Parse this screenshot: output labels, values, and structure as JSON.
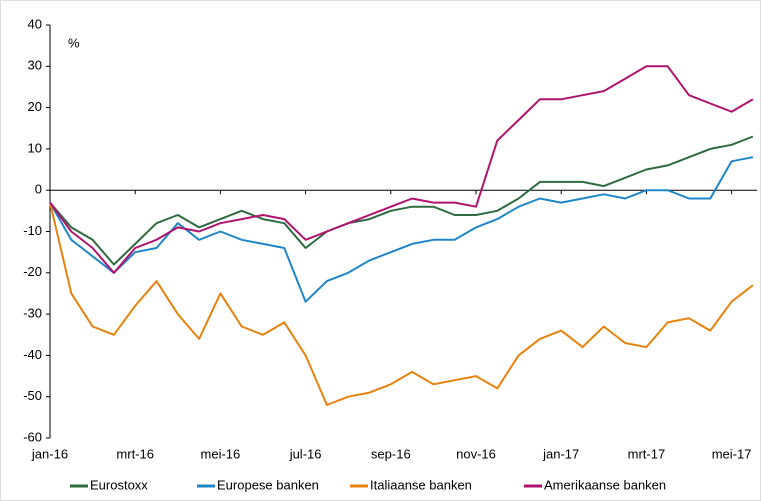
{
  "chart_data": {
    "type": "line",
    "y_label": "%",
    "categories": [
      "jan-16",
      null,
      null,
      null,
      "mrt-16",
      null,
      null,
      null,
      "mei-16",
      null,
      null,
      null,
      "jul-16",
      null,
      null,
      null,
      "sep-16",
      null,
      null,
      null,
      "nov-16",
      null,
      null,
      null,
      "jan-17",
      null,
      null,
      null,
      "mrt-17",
      null,
      null,
      null,
      "mei-17",
      null
    ],
    "series": [
      {
        "name": "Eurostoxx",
        "color": "#2e6b3f",
        "values": [
          -3,
          -9,
          -12,
          -18,
          -13,
          -8,
          -6,
          -9,
          -7,
          -5,
          -7,
          -8,
          -14,
          -10,
          -8,
          -7,
          -5,
          -4,
          -4,
          -6,
          -6,
          -5,
          -2,
          2,
          2,
          2,
          1,
          3,
          5,
          6,
          8,
          10,
          11,
          13
        ]
      },
      {
        "name": "Europese banken",
        "color": "#1f87c8",
        "values": [
          -3,
          -12,
          -16,
          -20,
          -15,
          -14,
          -8,
          -12,
          -10,
          -12,
          -13,
          -14,
          -27,
          -22,
          -20,
          -17,
          -15,
          -13,
          -12,
          -12,
          -9,
          -7,
          -4,
          -2,
          -3,
          -2,
          -1,
          -2,
          0,
          0,
          -2,
          -2,
          7,
          8
        ]
      },
      {
        "name": "Italiaanse banken",
        "color": "#e8820e",
        "values": [
          -3,
          -25,
          -33,
          -35,
          -28,
          -22,
          -30,
          -36,
          -25,
          -33,
          -35,
          -32,
          -40,
          -52,
          -50,
          -49,
          -47,
          -44,
          -47,
          -46,
          -45,
          -48,
          -40,
          -36,
          -34,
          -38,
          -33,
          -37,
          -38,
          -32,
          -31,
          -34,
          -27,
          -23
        ]
      },
      {
        "name": "Amerikaanse banken",
        "color": "#b0136e",
        "values": [
          -3,
          -10,
          -14,
          -20,
          -14,
          -12,
          -9,
          -10,
          -8,
          -7,
          -6,
          -7,
          -12,
          -10,
          -8,
          -6,
          -4,
          -2,
          -3,
          -3,
          -4,
          12,
          17,
          22,
          22,
          23,
          24,
          27,
          30,
          30,
          23,
          21,
          19,
          22
        ]
      }
    ],
    "ylim": [
      -60,
      40
    ],
    "yticks": [
      -60,
      -50,
      -40,
      -30,
      -20,
      -10,
      0,
      10,
      20,
      30,
      40
    ],
    "legend": "bottom"
  }
}
